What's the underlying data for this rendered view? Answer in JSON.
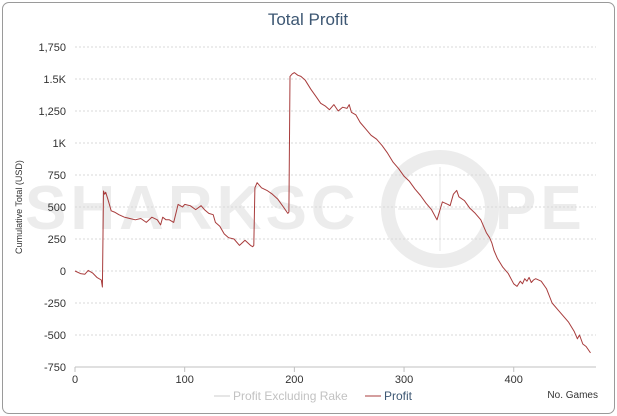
{
  "chart_data": {
    "type": "line",
    "title": "Total Profit",
    "xlabel": "No. Games",
    "ylabel": "Cumulative Total (USD)",
    "xlim": [
      0,
      475
    ],
    "ylim": [
      -750,
      1750
    ],
    "x_ticks": [
      {
        "value": 0,
        "label": "0"
      },
      {
        "value": 100,
        "label": "100"
      },
      {
        "value": 200,
        "label": "200"
      },
      {
        "value": 300,
        "label": "300"
      },
      {
        "value": 400,
        "label": "400"
      }
    ],
    "y_ticks": [
      {
        "value": 1750,
        "label": "1,750"
      },
      {
        "value": 1500,
        "label": "1.5K"
      },
      {
        "value": 1250,
        "label": "1,250"
      },
      {
        "value": 1000,
        "label": "1K"
      },
      {
        "value": 750,
        "label": "750"
      },
      {
        "value": 500,
        "label": "500"
      },
      {
        "value": 250,
        "label": "250"
      },
      {
        "value": 0,
        "label": "0"
      },
      {
        "value": -250,
        "label": "-250"
      },
      {
        "value": -500,
        "label": "-500"
      },
      {
        "value": -750,
        "label": "-750"
      }
    ],
    "grid": true,
    "legend_position": "bottom",
    "series": [
      {
        "name": "Profit Excluding Rake",
        "color": "#cccccc",
        "x": [],
        "y": []
      },
      {
        "name": "Profit",
        "color": "#a83c3c",
        "x": [
          0,
          5,
          9,
          12,
          16,
          20,
          24,
          25,
          26,
          27,
          28,
          30,
          33,
          36,
          40,
          45,
          50,
          55,
          60,
          65,
          70,
          75,
          78,
          80,
          83,
          86,
          90,
          94,
          96,
          98,
          100,
          105,
          110,
          115,
          118,
          122,
          126,
          128,
          132,
          136,
          140,
          145,
          150,
          155,
          160,
          162,
          163,
          164,
          166,
          170,
          175,
          180,
          185,
          190,
          194,
          195,
          196,
          198,
          200,
          203,
          206,
          210,
          215,
          220,
          224,
          228,
          232,
          236,
          240,
          244,
          248,
          250,
          252,
          256,
          260,
          265,
          270,
          275,
          280,
          285,
          290,
          295,
          300,
          305,
          310,
          315,
          320,
          325,
          330,
          335,
          340,
          342,
          345,
          348,
          350,
          355,
          360,
          365,
          370,
          375,
          378,
          380,
          382,
          385,
          390,
          395,
          400,
          403,
          406,
          408,
          410,
          412,
          414,
          416,
          418,
          420,
          425,
          430,
          435,
          440,
          445,
          450,
          455,
          458,
          460,
          463,
          466,
          470
        ],
        "y": [
          0,
          -20,
          -25,
          5,
          -15,
          -50,
          -70,
          -125,
          625,
          600,
          615,
          560,
          470,
          460,
          440,
          420,
          410,
          400,
          410,
          380,
          420,
          400,
          360,
          420,
          400,
          400,
          380,
          520,
          510,
          500,
          520,
          510,
          480,
          510,
          480,
          450,
          440,
          380,
          350,
          290,
          260,
          250,
          200,
          240,
          200,
          190,
          200,
          650,
          690,
          650,
          630,
          600,
          560,
          500,
          450,
          460,
          1520,
          1540,
          1550,
          1530,
          1520,
          1490,
          1420,
          1360,
          1310,
          1290,
          1260,
          1300,
          1250,
          1280,
          1270,
          1300,
          1240,
          1220,
          1160,
          1110,
          1060,
          1030,
          980,
          920,
          850,
          800,
          740,
          700,
          640,
          590,
          530,
          480,
          400,
          540,
          520,
          510,
          600,
          630,
          580,
          550,
          490,
          450,
          400,
          300,
          260,
          220,
          160,
          100,
          30,
          -20,
          -100,
          -120,
          -80,
          -100,
          -60,
          -80,
          -50,
          -90,
          -70,
          -60,
          -80,
          -140,
          -250,
          -300,
          -350,
          -400,
          -470,
          -530,
          -500,
          -570,
          -590,
          -640
        ]
      }
    ]
  },
  "watermark": {
    "text": "SHARKSCOPE"
  }
}
